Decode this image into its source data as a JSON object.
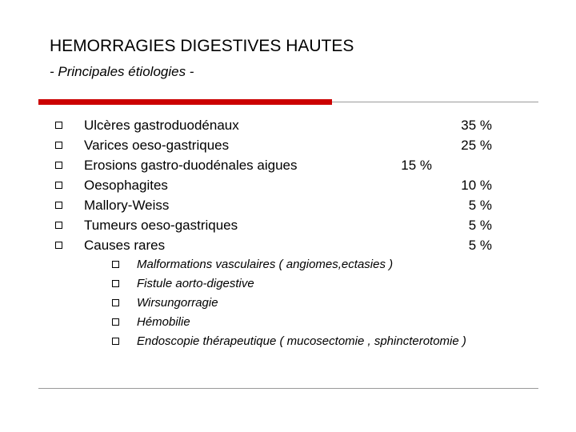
{
  "slide": {
    "title": "HEMORRAGIES DIGESTIVES HAUTES",
    "subtitle": "- Principales étiologies -",
    "accent_color": "#cc0000",
    "rule_color": "#9a9a9a"
  },
  "items": [
    {
      "label": "Ulcères gastroduodénaux",
      "value": "35 %"
    },
    {
      "label": "Varices oeso-gastriques",
      "value": "25 %"
    },
    {
      "label": "Erosions gastro-duodénales aigues",
      "value": "15 %"
    },
    {
      "label": "Oesophagites",
      "value": "10 %"
    },
    {
      "label": "Mallory-Weiss",
      "value": "5 %"
    },
    {
      "label": "Tumeurs oeso-gastriques",
      "value": "5 %"
    },
    {
      "label": "Causes rares",
      "value": "5 %"
    }
  ],
  "rare_causes": [
    "Malformations vasculaires ( angiomes,ectasies )",
    "Fistule aorto-digestive",
    "Wirsungorragie",
    "Hémobilie",
    "Endoscopie thérapeutique ( mucosectomie , sphincterotomie )"
  ],
  "bullet_icon": "hollow-square-icon"
}
